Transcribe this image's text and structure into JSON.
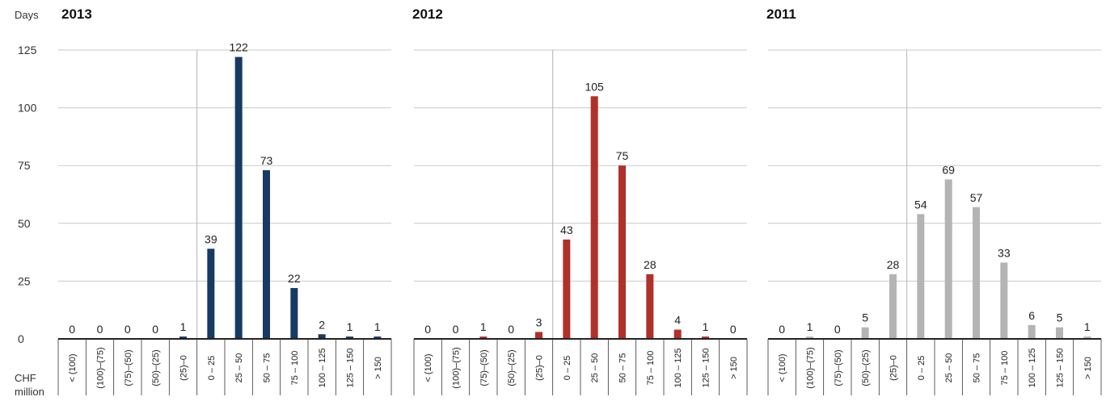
{
  "y_axis": {
    "label": "Days",
    "ticks": [
      "125",
      "100",
      "75",
      "50",
      "25",
      "0"
    ]
  },
  "x_unit_label": [
    "CHF",
    "million"
  ],
  "chart_data": [
    {
      "type": "bar",
      "title": "2013",
      "ylabel": "Days",
      "xlabel": "CHF million",
      "ylim": [
        0,
        125
      ],
      "grid": true,
      "color": "#173a63",
      "categories": [
        "< (100)",
        "(100)–(75)",
        "(75)–(50)",
        "(50)–(25)",
        "(25)–0",
        "0 – 25",
        "25 – 50",
        "50 – 75",
        "75 – 100",
        "100 – 125",
        "125 – 150",
        "> 150"
      ],
      "values": [
        0,
        0,
        0,
        0,
        1,
        39,
        122,
        73,
        22,
        2,
        1,
        1
      ]
    },
    {
      "type": "bar",
      "title": "2012",
      "ylabel": "Days",
      "xlabel": "CHF million",
      "ylim": [
        0,
        125
      ],
      "grid": true,
      "color": "#b0302a",
      "categories": [
        "< (100)",
        "(100)–(75)",
        "(75)–(50)",
        "(50)–(25)",
        "(25)–0",
        "0 – 25",
        "25 – 50",
        "50 – 75",
        "75 – 100",
        "100 – 125",
        "125 – 150",
        "> 150"
      ],
      "values": [
        0,
        0,
        1,
        0,
        3,
        43,
        105,
        75,
        28,
        4,
        1,
        0
      ]
    },
    {
      "type": "bar",
      "title": "2011",
      "ylabel": "Days",
      "xlabel": "CHF million",
      "ylim": [
        0,
        125
      ],
      "grid": true,
      "color": "#b4b4b4",
      "categories": [
        "< (100)",
        "(100)–(75)",
        "(75)–(50)",
        "(50)–(25)",
        "(25)–0",
        "0 – 25",
        "25 – 50",
        "50 – 75",
        "75 – 100",
        "100 – 125",
        "125 – 150",
        "> 150"
      ],
      "values": [
        0,
        1,
        0,
        5,
        28,
        54,
        69,
        57,
        33,
        6,
        5,
        1
      ]
    }
  ]
}
